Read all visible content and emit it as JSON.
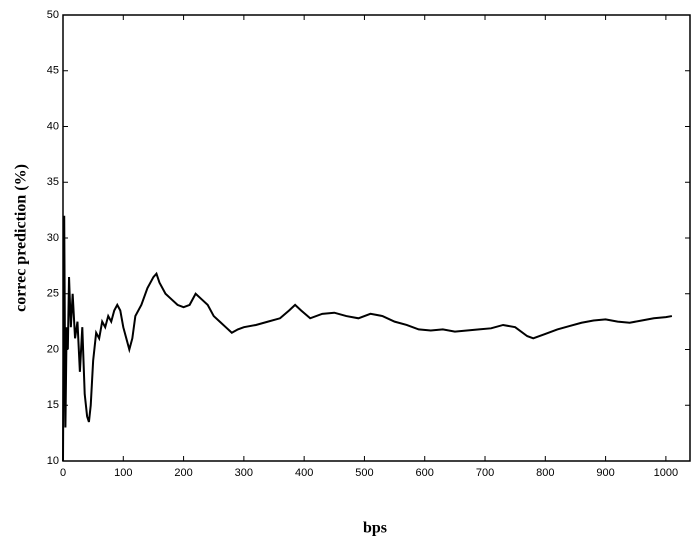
{
  "chart_data": {
    "type": "line",
    "x_label": "bps",
    "y_label": "correc prediction (%)",
    "xlim": [
      0,
      1040
    ],
    "ylim": [
      10,
      50
    ],
    "xticks": [
      0,
      100,
      200,
      300,
      400,
      500,
      600,
      700,
      800,
      900,
      1000
    ],
    "yticks": [
      10,
      15,
      20,
      25,
      30,
      35,
      40,
      45,
      50
    ],
    "x": [
      0,
      2,
      4,
      6,
      8,
      10,
      13,
      16,
      20,
      24,
      28,
      32,
      36,
      40,
      43,
      46,
      50,
      55,
      60,
      65,
      70,
      75,
      80,
      85,
      90,
      95,
      100,
      110,
      115,
      120,
      130,
      140,
      150,
      155,
      160,
      170,
      180,
      190,
      200,
      210,
      220,
      230,
      240,
      250,
      260,
      270,
      280,
      290,
      300,
      320,
      340,
      360,
      375,
      385,
      395,
      410,
      430,
      450,
      470,
      490,
      510,
      530,
      550,
      570,
      590,
      610,
      630,
      650,
      670,
      690,
      710,
      730,
      750,
      770,
      780,
      800,
      820,
      840,
      860,
      880,
      900,
      920,
      940,
      960,
      980,
      1000,
      1010
    ],
    "series": [
      {
        "color": "#000000",
        "values": [
          10,
          32,
          13,
          22,
          20,
          26.5,
          22,
          25,
          21,
          22.5,
          18,
          22,
          16,
          14,
          13.5,
          15,
          19,
          21.5,
          21,
          22.5,
          22,
          23,
          22.5,
          23.5,
          24,
          23.5,
          22,
          20,
          21,
          23,
          24,
          25.5,
          26.5,
          26.8,
          26,
          25,
          24.5,
          24,
          23.8,
          24,
          25,
          24.5,
          24,
          23,
          22.5,
          22,
          21.5,
          21.8,
          22,
          22.2,
          22.5,
          22.8,
          23.5,
          24,
          23.5,
          22.8,
          23.2,
          23.3,
          23,
          22.8,
          23.2,
          23,
          22.5,
          22.2,
          21.8,
          21.7,
          21.8,
          21.6,
          21.7,
          21.8,
          21.9,
          22.2,
          22,
          21.2,
          21,
          21.4,
          21.8,
          22.1,
          22.4,
          22.6,
          22.7,
          22.5,
          22.4,
          22.6,
          22.8,
          22.9,
          23
        ]
      }
    ]
  }
}
